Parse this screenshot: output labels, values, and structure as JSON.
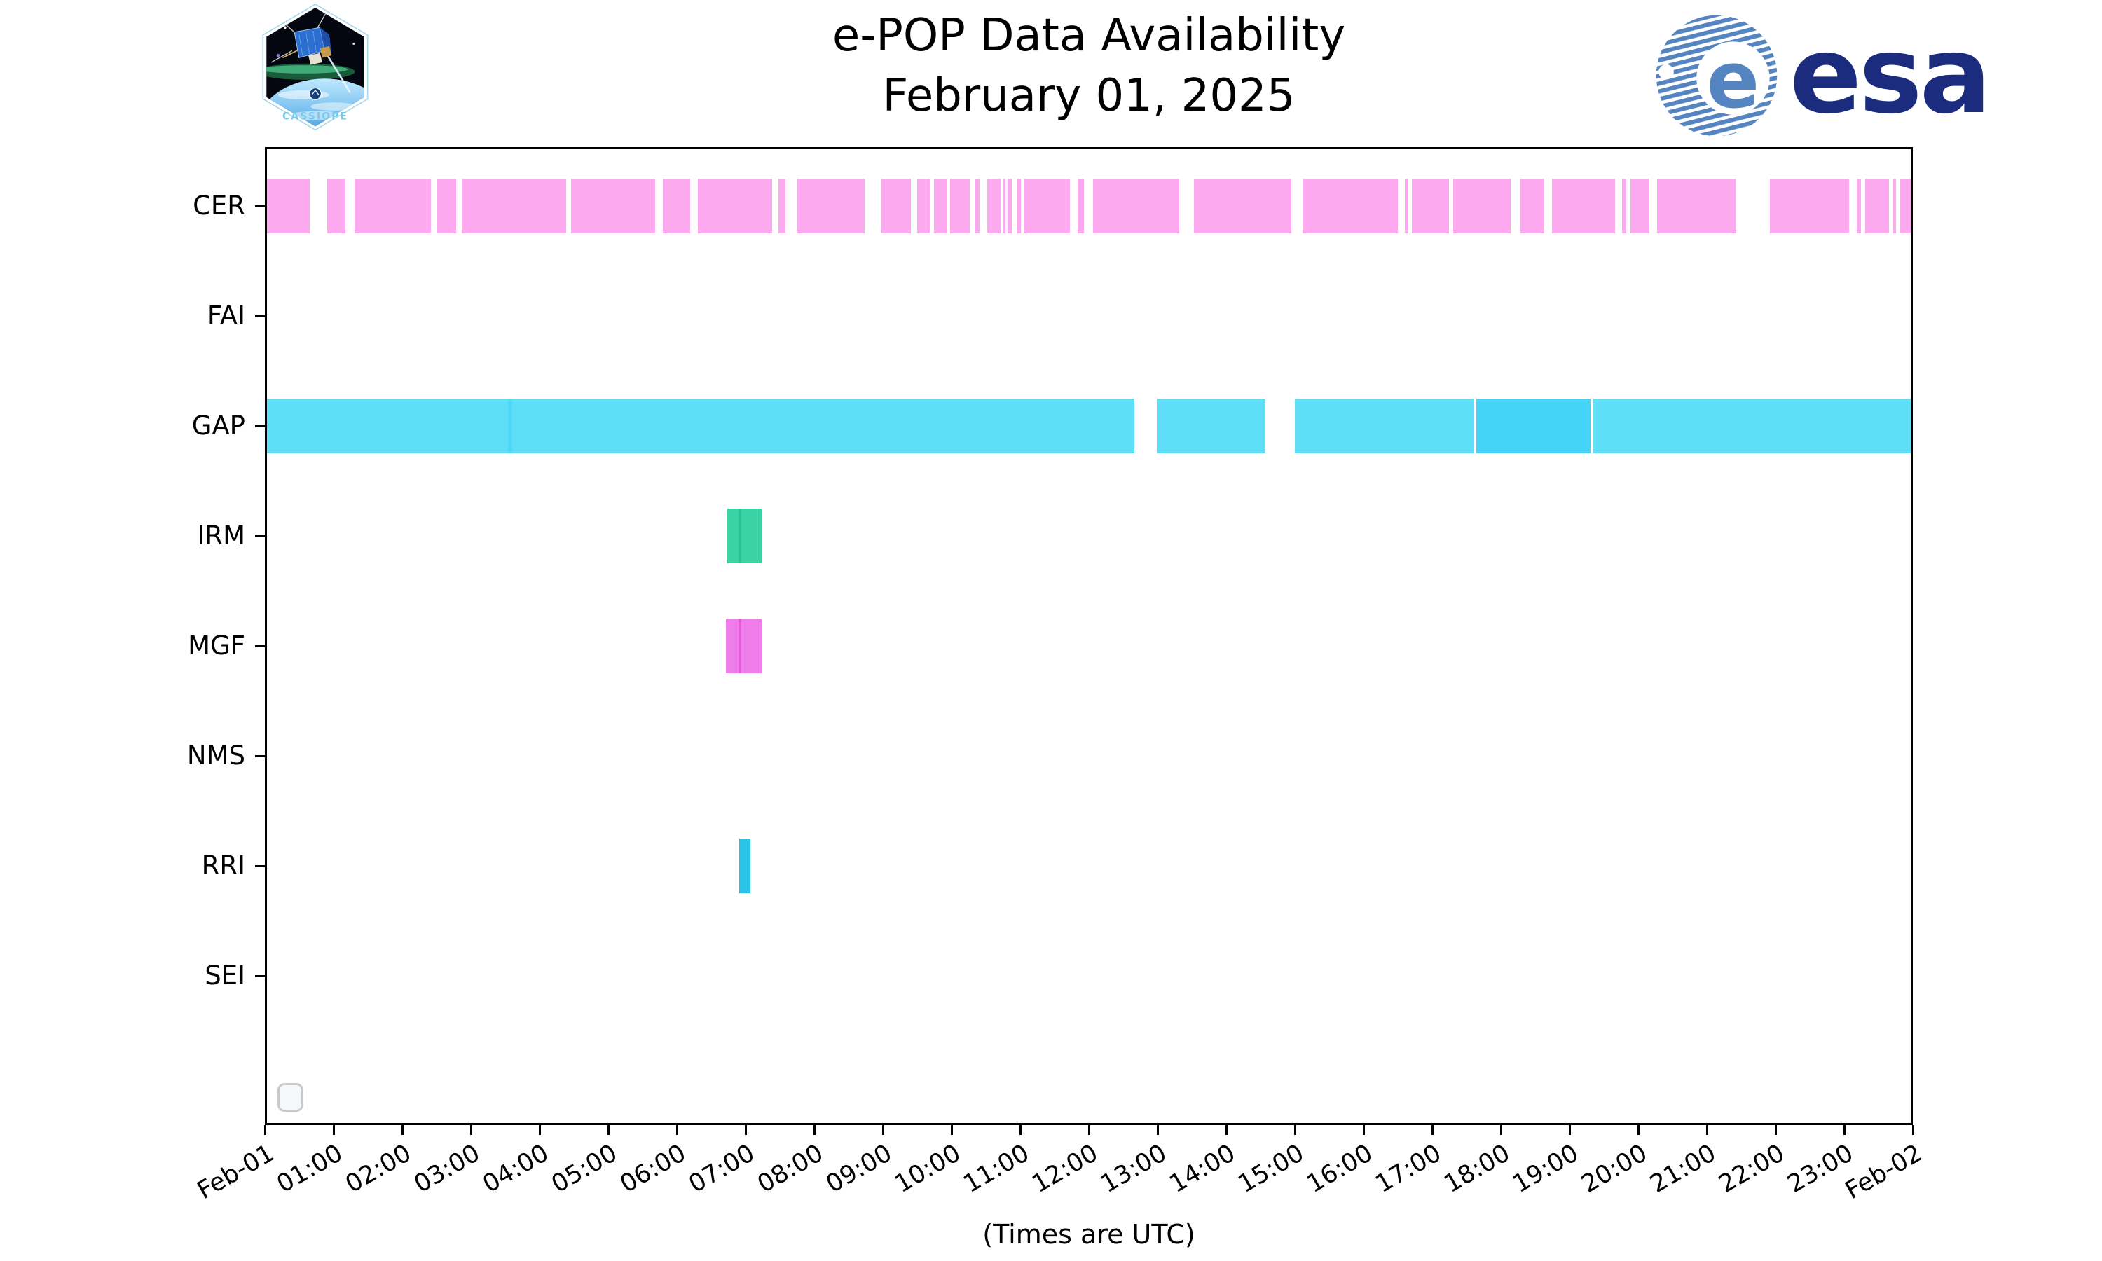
{
  "header": {
    "title_line1": "e-POP Data Availability",
    "title_line2": "February 01, 2025",
    "cassiope_label": "CASSIOPE",
    "esa_label": "esa"
  },
  "axis": {
    "xlabel": "(Times are UTC)",
    "x_tick_labels": [
      "Feb-01",
      "01:00",
      "02:00",
      "03:00",
      "04:00",
      "05:00",
      "06:00",
      "07:00",
      "08:00",
      "09:00",
      "10:00",
      "11:00",
      "12:00",
      "13:00",
      "14:00",
      "15:00",
      "16:00",
      "17:00",
      "18:00",
      "19:00",
      "20:00",
      "21:00",
      "22:00",
      "23:00",
      "Feb-02"
    ],
    "y_categories": [
      "CER",
      "FAI",
      "GAP",
      "IRM",
      "MGF",
      "NMS",
      "RRI",
      "SEI"
    ]
  },
  "legend": {
    "visible": true,
    "items": []
  },
  "colors": {
    "cer_pink": "#FCA9EF",
    "gap_cyan_light": "#5FDEF8",
    "gap_cyan_dark": "#45D4F7",
    "irm_green": "#3CD3A4",
    "mgf_violet": "#EE7DE9",
    "rri_cyan": "#2BC4E9",
    "esa_blue": "#1B2C7E",
    "esa_stripe_blue": "#5585C0",
    "axis_black": "#000000"
  },
  "chart_data": {
    "type": "timeline",
    "title": "e-POP Data Availability",
    "subtitle": "February 01, 2025",
    "xlabel": "(Times are UTC)",
    "x_unit": "hours UTC on 2025-02-01",
    "x_range_hours": [
      0,
      24
    ],
    "grid": false,
    "legend_position": "lower-left-empty",
    "categories": [
      "CER",
      "FAI",
      "GAP",
      "IRM",
      "MGF",
      "NMS",
      "RRI",
      "SEI"
    ],
    "rows": [
      {
        "label": "CER",
        "color": "#FCA9EF",
        "segments": [
          [
            0.0,
            0.62
          ],
          [
            0.88,
            1.15
          ],
          [
            1.28,
            2.39
          ],
          [
            2.49,
            2.76
          ],
          [
            2.84,
            4.37
          ],
          [
            4.44,
            5.67
          ],
          [
            5.78,
            6.18
          ],
          [
            6.29,
            7.38
          ],
          [
            7.47,
            7.57
          ],
          [
            7.74,
            8.73
          ],
          [
            8.96,
            9.4
          ],
          [
            9.49,
            9.68
          ],
          [
            9.74,
            9.93
          ],
          [
            9.97,
            10.26
          ],
          [
            10.34,
            10.4
          ],
          [
            10.52,
            10.71
          ],
          [
            10.74,
            10.78
          ],
          [
            10.81,
            10.87
          ],
          [
            10.96,
            11.01
          ],
          [
            11.05,
            11.72
          ],
          [
            11.84,
            11.93
          ],
          [
            12.06,
            13.32
          ],
          [
            13.53,
            14.96
          ],
          [
            15.12,
            16.51
          ],
          [
            16.61,
            16.66
          ],
          [
            16.72,
            17.26
          ],
          [
            17.32,
            18.16
          ],
          [
            18.3,
            18.65
          ],
          [
            18.76,
            19.68
          ],
          [
            19.79,
            19.85
          ],
          [
            19.91,
            20.18
          ],
          [
            20.3,
            21.45
          ],
          [
            21.94,
            23.1
          ],
          [
            23.21,
            23.27
          ],
          [
            23.33,
            23.68
          ],
          [
            23.74,
            23.79
          ],
          [
            23.84,
            24.0
          ]
        ],
        "overlays": []
      },
      {
        "label": "FAI",
        "color": null,
        "segments": [],
        "overlays": []
      },
      {
        "label": "GAP",
        "color": "#5FDEF8",
        "segments": [
          [
            0.0,
            12.67
          ],
          [
            12.99,
            14.58
          ],
          [
            15.01,
            17.63
          ],
          [
            17.66,
            19.33,
            "#45D4F7"
          ],
          [
            19.37,
            24.0
          ]
        ],
        "overlays": [
          [
            3.52,
            3.58,
            "#4ED9F6"
          ]
        ]
      },
      {
        "label": "IRM",
        "color": "#3CD3A4",
        "segments": [
          [
            6.72,
            7.22
          ]
        ],
        "overlays": [
          [
            6.89,
            6.93,
            "#28C795"
          ]
        ]
      },
      {
        "label": "MGF",
        "color": "#EE7DE9",
        "segments": [
          [
            6.7,
            7.22
          ]
        ],
        "overlays": [
          [
            6.89,
            6.93,
            "#E35BDB"
          ]
        ]
      },
      {
        "label": "NMS",
        "color": null,
        "segments": [],
        "overlays": []
      },
      {
        "label": "RRI",
        "color": "#2BC4E9",
        "segments": [
          [
            6.9,
            7.06
          ]
        ],
        "overlays": []
      },
      {
        "label": "SEI",
        "color": null,
        "segments": [],
        "overlays": []
      }
    ]
  }
}
